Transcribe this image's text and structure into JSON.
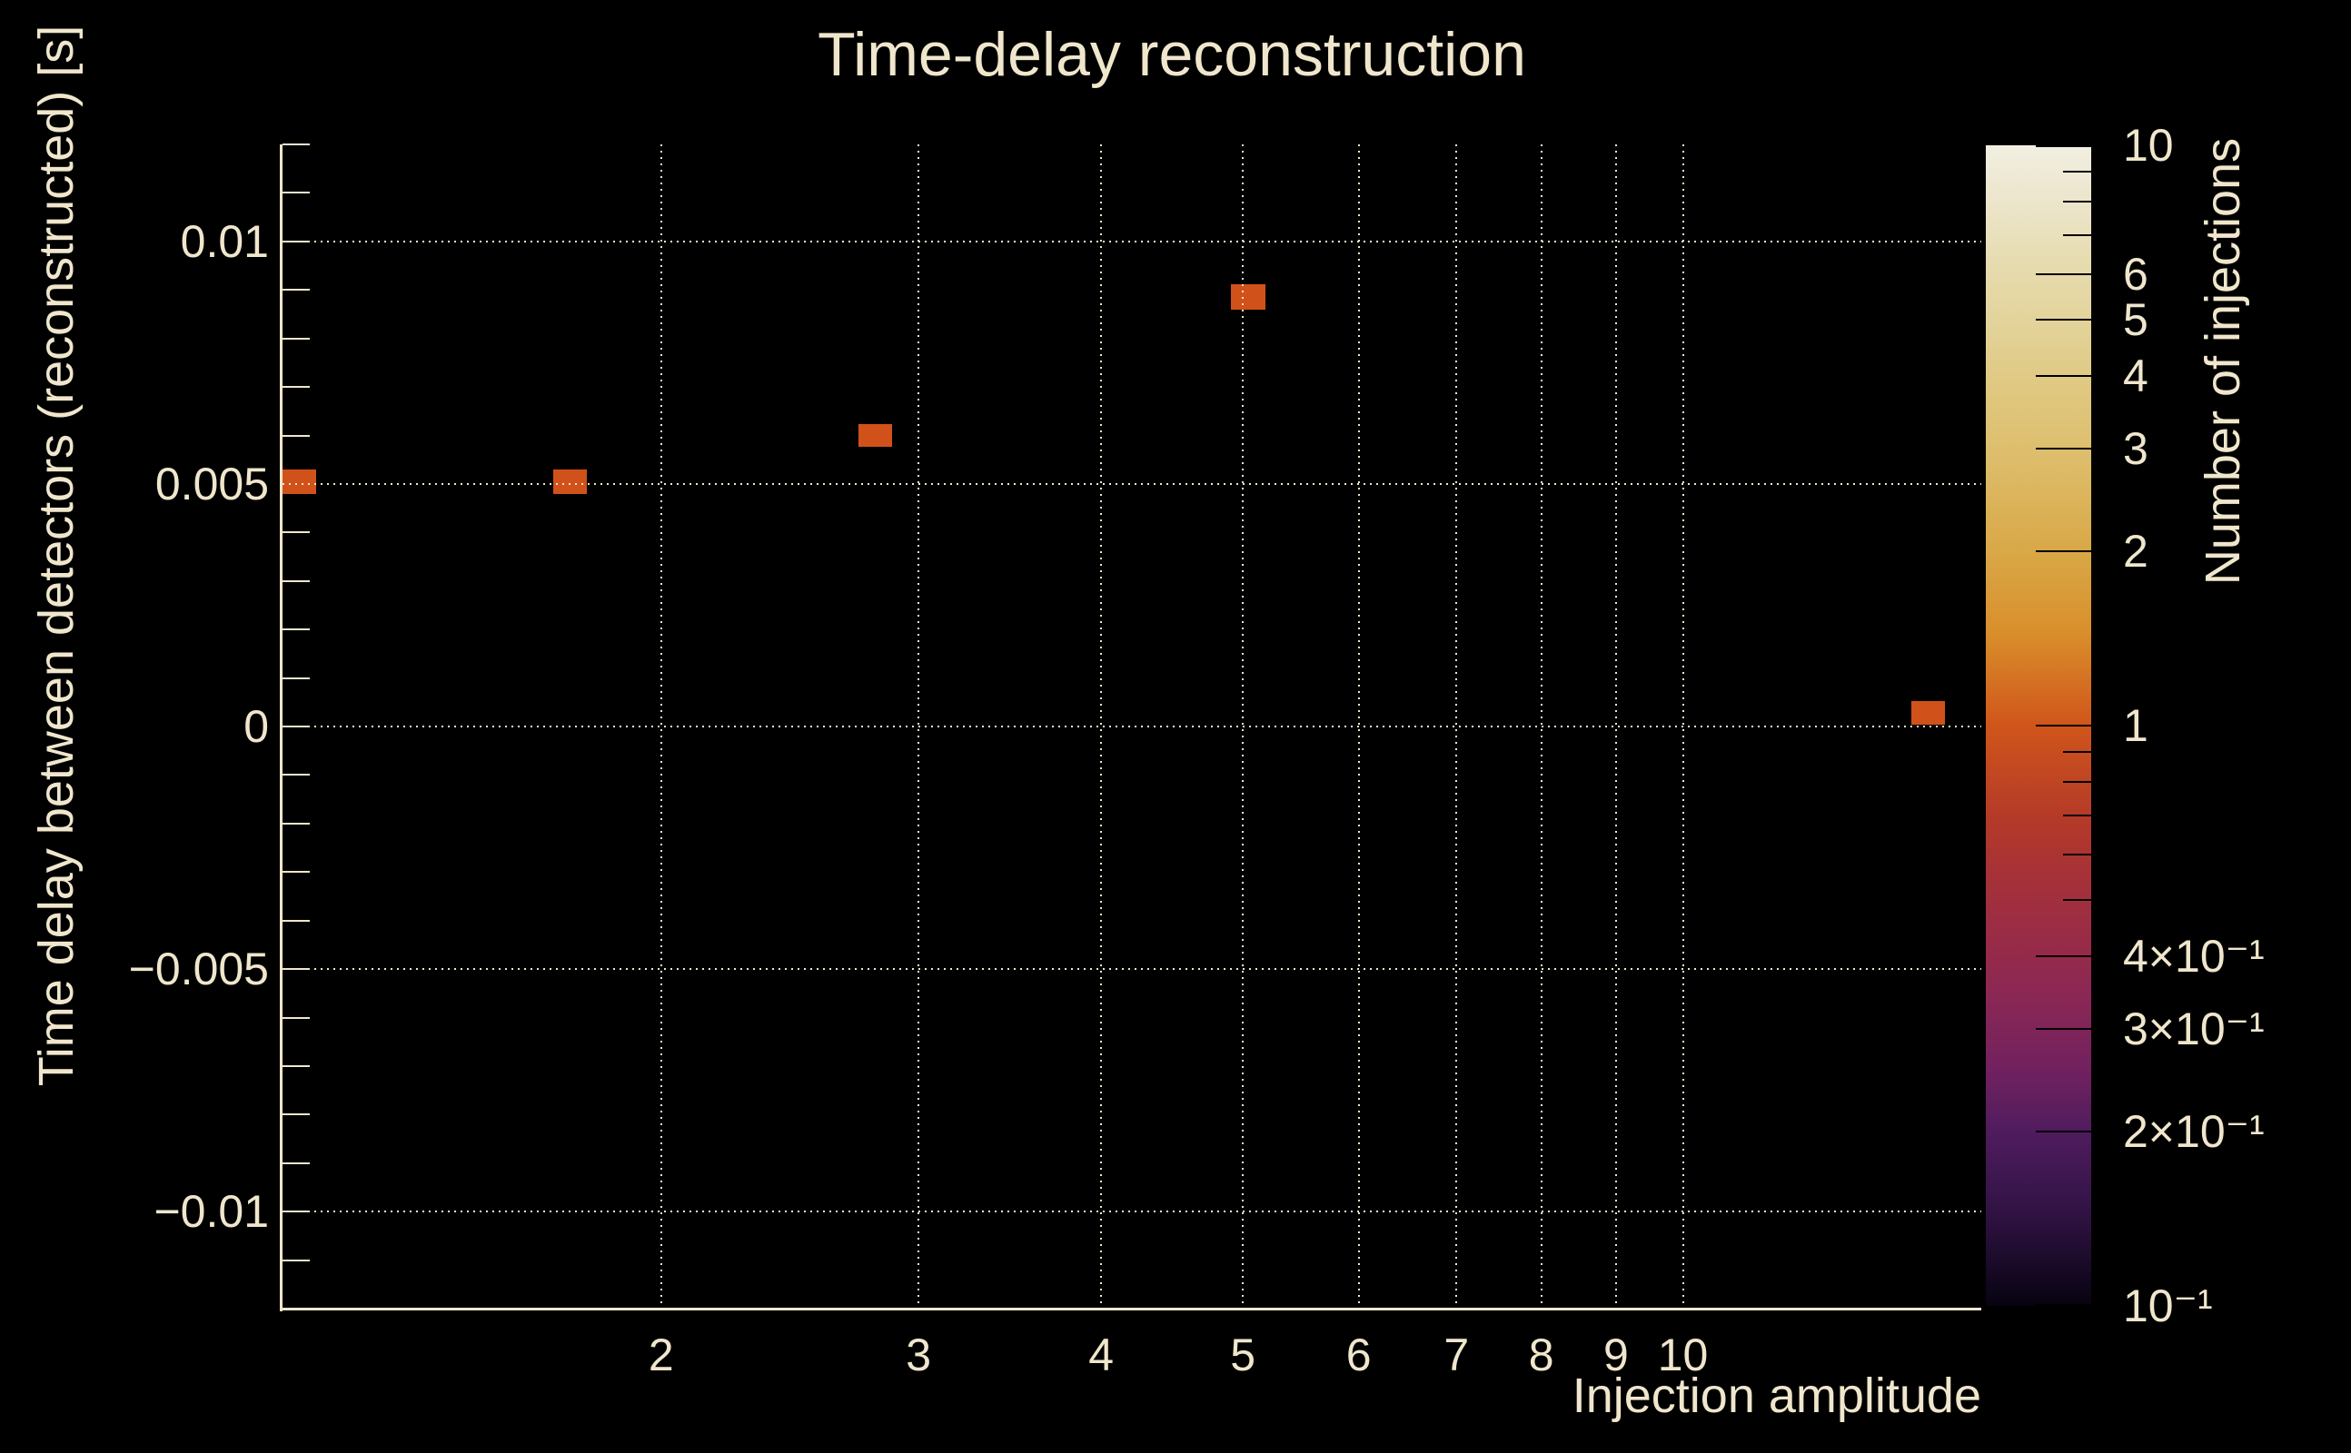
{
  "title": "Time-delay reconstruction",
  "colors": {
    "background": "#000000",
    "text": "#efe6cc",
    "grid": "#efe6cc",
    "axis": "#efe6cc",
    "marker": "#d0521a",
    "colorbar_tick": "#000000"
  },
  "chart_data": {
    "type": "heatmap",
    "title": "Time-delay reconstruction",
    "xlabel": "Injection amplitude",
    "ylabel": "Time delay between detectors (reconstructed) [s]",
    "zlabel": "Number of injections",
    "x_scale": "log",
    "xlim": [
      1.1,
      16.0
    ],
    "ylim": [
      -0.012,
      0.012
    ],
    "z_scale": "log",
    "zlim": [
      0.1,
      10
    ],
    "grid": true,
    "x_ticks": [
      {
        "value": 2,
        "label": "2"
      },
      {
        "value": 3,
        "label": "3"
      },
      {
        "value": 4,
        "label": "4"
      },
      {
        "value": 5,
        "label": "5"
      },
      {
        "value": 6,
        "label": "6"
      },
      {
        "value": 7,
        "label": "7"
      },
      {
        "value": 8,
        "label": "8"
      },
      {
        "value": 9,
        "label": "9"
      },
      {
        "value": 10,
        "label": "10"
      }
    ],
    "y_major_ticks": [
      {
        "value": 0.01,
        "label": "0.01"
      },
      {
        "value": 0.005,
        "label": "0.005"
      },
      {
        "value": 0,
        "label": "0"
      },
      {
        "value": -0.005,
        "label": "−0.005"
      },
      {
        "value": -0.01,
        "label": "−0.01"
      }
    ],
    "y_minor_ticks": [
      -0.011,
      -0.01,
      -0.009,
      -0.008,
      -0.007,
      -0.006,
      -0.005,
      -0.004,
      -0.003,
      -0.002,
      -0.001,
      0,
      0.001,
      0.002,
      0.003,
      0.004,
      0.005,
      0.006,
      0.007,
      0.008,
      0.009,
      0.01,
      0.011,
      0.012
    ],
    "points": [
      {
        "x_min": 1.1,
        "x_max": 1.161,
        "y_min": 0.0048,
        "y_max": 0.0053,
        "count": 1
      },
      {
        "x_min": 1.687,
        "x_max": 1.78,
        "y_min": 0.0048,
        "y_max": 0.0053,
        "count": 1
      },
      {
        "x_min": 2.729,
        "x_max": 2.879,
        "y_min": 0.00577,
        "y_max": 0.00624,
        "count": 1
      },
      {
        "x_min": 4.908,
        "x_max": 5.179,
        "y_min": 0.0086,
        "y_max": 0.00911,
        "count": 1
      },
      {
        "x_min": 14.32,
        "x_max": 15.11,
        "y_min": 4e-05,
        "y_max": 0.00053,
        "count": 1
      }
    ],
    "colorbar": {
      "labeled_ticks": [
        {
          "value": 10,
          "label": "10"
        },
        {
          "value": 6,
          "label": "6"
        },
        {
          "value": 5,
          "label": "5"
        },
        {
          "value": 4,
          "label": "4"
        },
        {
          "value": 3,
          "label": "3"
        },
        {
          "value": 2,
          "label": "2"
        },
        {
          "value": 1,
          "label": "1"
        },
        {
          "value": 0.4,
          "label": "4×10⁻¹"
        },
        {
          "value": 0.3,
          "label": "3×10⁻¹"
        },
        {
          "value": 0.2,
          "label": "2×10⁻¹"
        },
        {
          "value": 0.1,
          "label": "10⁻¹"
        }
      ],
      "major_tick_values": [
        10,
        6,
        5,
        4,
        3,
        2,
        1,
        0.4,
        0.3,
        0.2,
        0.1
      ],
      "minor_tick_values": [
        9,
        8,
        7,
        0.9,
        0.8,
        0.7,
        0.6,
        0.5
      ],
      "gradient": [
        {
          "pos": 0.0,
          "color": "#f2efe2"
        },
        {
          "pos": 0.05,
          "color": "#ece5cb"
        },
        {
          "pos": 0.1,
          "color": "#e7dcb0"
        },
        {
          "pos": 0.15,
          "color": "#e3d49c"
        },
        {
          "pos": 0.2,
          "color": "#e0ca84"
        },
        {
          "pos": 0.27,
          "color": "#ddbd6b"
        },
        {
          "pos": 0.35,
          "color": "#d9a847"
        },
        {
          "pos": 0.42,
          "color": "#d98f2b"
        },
        {
          "pos": 0.5,
          "color": "#d0551b"
        },
        {
          "pos": 0.58,
          "color": "#b43a28"
        },
        {
          "pos": 0.63,
          "color": "#a63138"
        },
        {
          "pos": 0.69,
          "color": "#972b48"
        },
        {
          "pos": 0.735,
          "color": "#8a2755"
        },
        {
          "pos": 0.8,
          "color": "#6f215f"
        },
        {
          "pos": 0.85,
          "color": "#4f1c5e"
        },
        {
          "pos": 0.91,
          "color": "#351448"
        },
        {
          "pos": 0.96,
          "color": "#1c0b2b"
        },
        {
          "pos": 1.0,
          "color": "#070310"
        }
      ]
    }
  }
}
